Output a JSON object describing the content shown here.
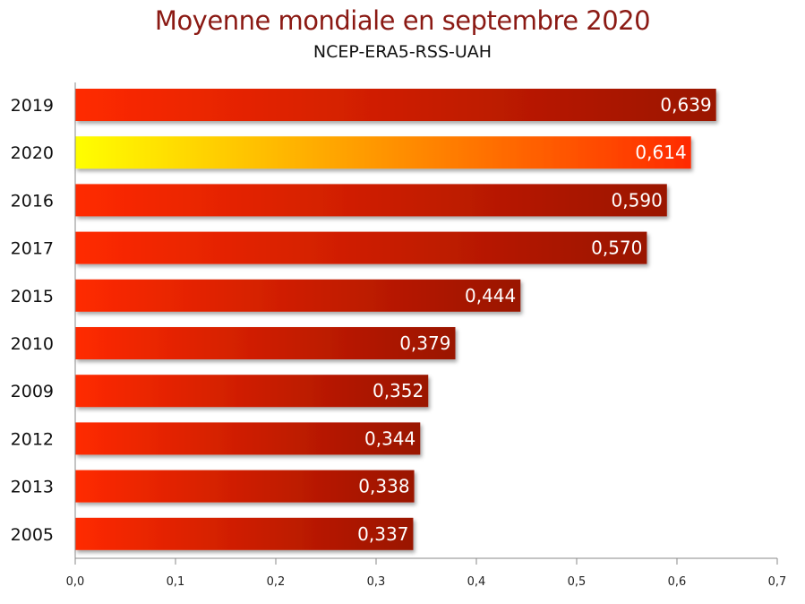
{
  "chart_data": {
    "type": "bar",
    "orientation": "horizontal",
    "title": "Moyenne mondiale en septembre 2020",
    "subtitle": "NCEP-ERA5-RSS-UAH",
    "categories": [
      "2019",
      "2020",
      "2016",
      "2017",
      "2015",
      "2010",
      "2009",
      "2012",
      "2013",
      "2005"
    ],
    "values": [
      0.639,
      0.614,
      0.59,
      0.57,
      0.444,
      0.379,
      0.352,
      0.344,
      0.338,
      0.337
    ],
    "value_labels": [
      "0,639",
      "0,614",
      "0,590",
      "0,570",
      "0,444",
      "0,379",
      "0,352",
      "0,344",
      "0,338",
      "0,337"
    ],
    "highlight_category": "2020",
    "xlim": [
      0,
      0.7
    ],
    "x_ticks": [
      0,
      0.1,
      0.2,
      0.3,
      0.4,
      0.5,
      0.6,
      0.7
    ],
    "x_tick_labels": [
      "0,0",
      "0,1",
      "0,2",
      "0,3",
      "0,4",
      "0,5",
      "0,6",
      "0,7"
    ],
    "grid": false,
    "legend": "none",
    "colors": {
      "bar_start": "#ff2a00",
      "bar_end": "#9a1200",
      "highlight_start": "#ffff00",
      "highlight_end": "#ff2a00",
      "title": "#8b1a14"
    }
  }
}
